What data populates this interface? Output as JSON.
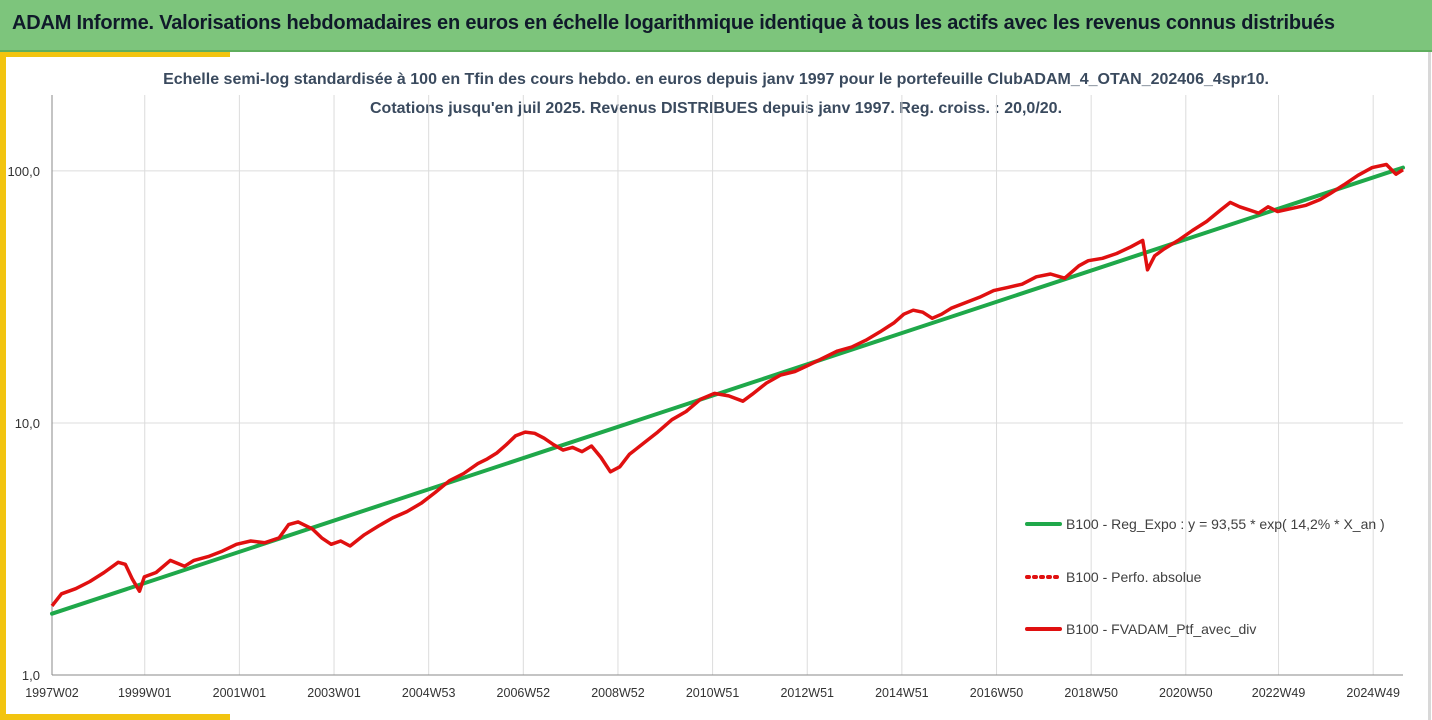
{
  "banner": {
    "title": "ADAM Informe. Valorisations hebdomadaires en euros en échelle logarithmique identique à tous les actifs avec les revenus connus distribués"
  },
  "colors": {
    "banner_bg": "#7dc57c",
    "accent": "#f2c40f",
    "regression": "#1fa84a",
    "portfolio": "#e01010",
    "perfo": "#e01010",
    "gridline": "#dcdcdc"
  },
  "chart_data": {
    "type": "line",
    "title": "Echelle semi-log standardisée  à 100 en Tfin des cours hebdo.  en euros depuis janv 1997 pour le portefeuille ClubADAM_4_OTAN_202406_4spr10.",
    "subtitle": "Cotations  jusqu'en juil 2025. Revenus DISTRIBUES depuis janv 1997. Reg. croiss. : 20,0/20.",
    "xlabel": "",
    "ylabel": "",
    "y_scale": "log",
    "ylim": [
      1,
      200
    ],
    "xlim": [
      1997.0,
      2025.55
    ],
    "grid": true,
    "legend_position": "right",
    "yticks": [
      1,
      10,
      100
    ],
    "ytick_labels": [
      "1,0",
      "10,0",
      "100,0"
    ],
    "xticks": [
      1997.0,
      1998.96,
      2000.96,
      2002.96,
      2004.96,
      2006.96,
      2008.96,
      2010.96,
      2012.96,
      2014.96,
      2016.96,
      2018.96,
      2020.96,
      2022.92,
      2024.92
    ],
    "xtick_labels": [
      "1997W02",
      "1999W01",
      "2001W01",
      "2003W01",
      "2004W53",
      "2006W52",
      "2008W52",
      "2010W51",
      "2012W51",
      "2014W51",
      "2016W50",
      "2018W50",
      "2020W50",
      "2022W49",
      "2024W49"
    ],
    "series": [
      {
        "name": "B100 - Reg_Expo : y = 93,55 * exp( 14,2% *  X_an )",
        "style": "solid-green",
        "x": [
          1997.0,
          2025.55
        ],
        "values": [
          1.75,
          103
        ]
      },
      {
        "name": "B100 - Perfo. absolue",
        "style": "dotted-red",
        "x": [],
        "values": []
      },
      {
        "name": "B100 - FVADAM_Ptf_avec_div",
        "style": "solid-red",
        "x": [
          1997.0,
          1997.2,
          1997.5,
          1997.8,
          1998.1,
          1998.4,
          1998.55,
          1998.7,
          1998.85,
          1998.95,
          1999.2,
          1999.5,
          1999.8,
          2000.0,
          2000.3,
          2000.6,
          2000.9,
          2001.2,
          2001.5,
          2001.8,
          2002.0,
          2002.2,
          2002.5,
          2002.7,
          2002.9,
          2003.1,
          2003.3,
          2003.6,
          2003.9,
          2004.2,
          2004.5,
          2004.8,
          2005.1,
          2005.4,
          2005.7,
          2006.0,
          2006.2,
          2006.4,
          2006.6,
          2006.8,
          2007.0,
          2007.2,
          2007.4,
          2007.6,
          2007.8,
          2008.0,
          2008.2,
          2008.4,
          2008.6,
          2008.8,
          2009.0,
          2009.2,
          2009.5,
          2009.8,
          2010.1,
          2010.4,
          2010.7,
          2011.0,
          2011.3,
          2011.6,
          2011.8,
          2012.1,
          2012.4,
          2012.7,
          2013.0,
          2013.3,
          2013.6,
          2013.9,
          2014.2,
          2014.5,
          2014.8,
          2015.0,
          2015.2,
          2015.4,
          2015.6,
          2015.8,
          2016.0,
          2016.3,
          2016.6,
          2016.9,
          2017.2,
          2017.5,
          2017.8,
          2018.1,
          2018.4,
          2018.7,
          2018.9,
          2019.2,
          2019.5,
          2019.8,
          2020.05,
          2020.15,
          2020.3,
          2020.5,
          2020.8,
          2021.1,
          2021.4,
          2021.7,
          2021.9,
          2022.1,
          2022.3,
          2022.5,
          2022.7,
          2022.9,
          2023.2,
          2023.5,
          2023.8,
          2024.0,
          2024.3,
          2024.6,
          2024.9,
          2025.2,
          2025.4,
          2025.55
        ],
        "values": [
          1.88,
          2.1,
          2.2,
          2.35,
          2.55,
          2.8,
          2.75,
          2.4,
          2.15,
          2.45,
          2.55,
          2.85,
          2.7,
          2.85,
          2.95,
          3.1,
          3.3,
          3.4,
          3.35,
          3.5,
          3.95,
          4.05,
          3.8,
          3.5,
          3.3,
          3.4,
          3.25,
          3.6,
          3.9,
          4.2,
          4.45,
          4.8,
          5.3,
          5.9,
          6.3,
          6.9,
          7.2,
          7.6,
          8.2,
          8.9,
          9.2,
          9.1,
          8.7,
          8.2,
          7.8,
          8.0,
          7.7,
          8.1,
          7.3,
          6.4,
          6.7,
          7.5,
          8.3,
          9.2,
          10.3,
          11.1,
          12.4,
          13.1,
          12.8,
          12.2,
          13.0,
          14.4,
          15.5,
          16.0,
          17.0,
          18.1,
          19.3,
          20.0,
          21.3,
          23.0,
          25.0,
          27.0,
          28.0,
          27.5,
          26.0,
          27.0,
          28.5,
          30.0,
          31.5,
          33.5,
          34.5,
          35.5,
          38.0,
          39.0,
          37.5,
          42.0,
          44.0,
          45.0,
          47.0,
          50.0,
          53.0,
          40.5,
          46.0,
          49.0,
          53.0,
          58.0,
          63.0,
          70.0,
          75.0,
          72.0,
          70.0,
          68.0,
          72.0,
          69.0,
          71.0,
          73.0,
          77.0,
          81.0,
          88.0,
          96.0,
          103.0,
          106.0,
          97.0,
          101.0
        ]
      }
    ]
  }
}
